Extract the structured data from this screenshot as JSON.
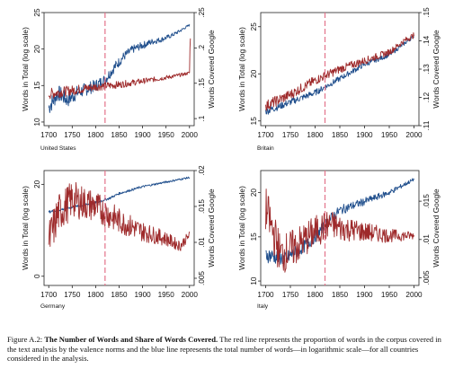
{
  "caption": {
    "label": "Figure A.2:",
    "title": "The Number of Words and Share of Words Covered.",
    "body": "The red line represents the proportion of words in the corpus covered in the text analysis by the valence norms and the blue line represents the total number of words—in logarithmic scale—for all countries considered in the analysis."
  },
  "colors": {
    "blue": "#1f4e8c",
    "red": "#9e2a2b",
    "dash": "#e3738a"
  },
  "chart_data": [
    {
      "type": "line",
      "title": "United States",
      "ylabel_left": "Words in Total (log scale)",
      "ylabel_right": "Words Covered Google",
      "x_ticks": [
        1700,
        1750,
        1800,
        1850,
        1900,
        1950,
        2000
      ],
      "xlim": [
        1690,
        2010
      ],
      "left_ticks": [
        "10",
        "15",
        "20",
        "25"
      ],
      "left_ylim": [
        9.5,
        25
      ],
      "right_ticks": [
        ".1",
        ".15",
        ".2",
        ".25"
      ],
      "right_ylim": [
        0.09,
        0.25
      ],
      "vline_x": 1820,
      "series": [
        {
          "color": "blue",
          "axis": "left",
          "anchors": [
            [
              1700,
              12
            ],
            [
              1720,
              14
            ],
            [
              1740,
              13
            ],
            [
              1760,
              14
            ],
            [
              1780,
              14.5
            ],
            [
              1800,
              15
            ],
            [
              1820,
              15.8
            ],
            [
              1840,
              17.5
            ],
            [
              1860,
              19
            ],
            [
              1880,
              20
            ],
            [
              1900,
              20.5
            ],
            [
              1920,
              21
            ],
            [
              1940,
              21.3
            ],
            [
              1960,
              21.8
            ],
            [
              1980,
              22.5
            ],
            [
              2000,
              23.3
            ]
          ],
          "noise": 1.2,
          "noise_end": 0.15
        },
        {
          "color": "red",
          "axis": "right",
          "anchors": [
            [
              1700,
              0.135
            ],
            [
              1750,
              0.14
            ],
            [
              1800,
              0.145
            ],
            [
              1850,
              0.148
            ],
            [
              1900,
              0.153
            ],
            [
              1950,
              0.158
            ],
            [
              1990,
              0.163
            ],
            [
              2000,
              0.165
            ],
            [
              2001,
              0.2
            ],
            [
              2002,
              0.215
            ]
          ],
          "noise": 0.008,
          "noise_end": 0.002
        }
      ]
    },
    {
      "type": "line",
      "title": "Britain",
      "ylabel_left": "Words in Total (log scale)",
      "ylabel_right": "Words Covered Google",
      "x_ticks": [
        1700,
        1750,
        1800,
        1850,
        1900,
        1950,
        2000
      ],
      "xlim": [
        1690,
        2010
      ],
      "left_ticks": [
        "15",
        "20",
        "25"
      ],
      "left_ylim": [
        14.5,
        26.5
      ],
      "right_ticks": [
        ".11",
        ".12",
        ".13",
        ".14",
        ".15"
      ],
      "right_ylim": [
        0.11,
        0.15
      ],
      "vline_x": 1820,
      "series": [
        {
          "color": "blue",
          "axis": "left",
          "anchors": [
            [
              1700,
              16
            ],
            [
              1750,
              17
            ],
            [
              1800,
              18
            ],
            [
              1850,
              19.5
            ],
            [
              1900,
              21
            ],
            [
              1950,
              22
            ],
            [
              2000,
              24
            ]
          ],
          "noise": 0.4,
          "noise_end": 0.2
        },
        {
          "color": "red",
          "axis": "right",
          "anchors": [
            [
              1700,
              0.117
            ],
            [
              1750,
              0.121
            ],
            [
              1800,
              0.126
            ],
            [
              1850,
              0.13
            ],
            [
              1900,
              0.133
            ],
            [
              1950,
              0.136
            ],
            [
              1980,
              0.14
            ],
            [
              2000,
              0.142
            ]
          ],
          "noise": 0.002,
          "noise_end": 0.001
        }
      ]
    },
    {
      "type": "line",
      "title": "Germany",
      "ylabel_left": "Words in Total (log scale)",
      "ylabel_right": "Words Covered Google",
      "x_ticks": [
        1700,
        1750,
        1800,
        1850,
        1900,
        1950,
        2000
      ],
      "xlim": [
        1690,
        2010
      ],
      "left_ticks": [
        "0",
        "20"
      ],
      "left_ylim": [
        -2,
        23
      ],
      "right_ticks": [
        ".005",
        ".01",
        ".015",
        ".02"
      ],
      "right_ylim": [
        0.004,
        0.02
      ],
      "vline_x": 1820,
      "series": [
        {
          "color": "blue",
          "axis": "left",
          "anchors": [
            [
              1700,
              14
            ],
            [
              1750,
              15
            ],
            [
              1800,
              16
            ],
            [
              1830,
              17
            ],
            [
              1850,
              18
            ],
            [
              1900,
              19.5
            ],
            [
              1950,
              20.5
            ],
            [
              2000,
              21.5
            ]
          ],
          "noise": 0.3,
          "noise_end": 0.2
        },
        {
          "color": "red",
          "axis": "right",
          "anchors": [
            [
              1700,
              0.01
            ],
            [
              1720,
              0.014
            ],
            [
              1750,
              0.016
            ],
            [
              1800,
              0.015
            ],
            [
              1850,
              0.013
            ],
            [
              1900,
              0.0115
            ],
            [
              1950,
              0.0105
            ],
            [
              1980,
              0.0095
            ],
            [
              2000,
              0.011
            ]
          ],
          "noise": 0.003,
          "noise_end": 0.0006
        }
      ]
    },
    {
      "type": "line",
      "title": "Italy",
      "ylabel_left": "Words in Total (log scale)",
      "ylabel_right": "Words Covered Google",
      "x_ticks": [
        1700,
        1750,
        1800,
        1850,
        1900,
        1950,
        2000
      ],
      "xlim": [
        1690,
        2010
      ],
      "left_ticks": [
        "10",
        "15",
        "20"
      ],
      "left_ylim": [
        9.5,
        22.5
      ],
      "right_ticks": [
        ".005",
        ".01",
        ".015"
      ],
      "right_ylim": [
        0.004,
        0.019
      ],
      "vline_x": 1820,
      "series": [
        {
          "color": "blue",
          "axis": "left",
          "anchors": [
            [
              1700,
              13
            ],
            [
              1740,
              12.5
            ],
            [
              1780,
              14
            ],
            [
              1800,
              15
            ],
            [
              1830,
              17
            ],
            [
              1850,
              18
            ],
            [
              1900,
              19
            ],
            [
              1950,
              20
            ],
            [
              2000,
              21.5
            ]
          ],
          "noise": 0.9,
          "noise_end": 0.2
        },
        {
          "color": "red",
          "axis": "right",
          "anchors": [
            [
              1700,
              0.014
            ],
            [
              1730,
              0.008
            ],
            [
              1760,
              0.009
            ],
            [
              1800,
              0.011
            ],
            [
              1830,
              0.012
            ],
            [
              1850,
              0.0115
            ],
            [
              1900,
              0.011
            ],
            [
              1950,
              0.0105
            ],
            [
              2000,
              0.0105
            ]
          ],
          "noise": 0.003,
          "noise_end": 0.0005
        }
      ]
    }
  ]
}
